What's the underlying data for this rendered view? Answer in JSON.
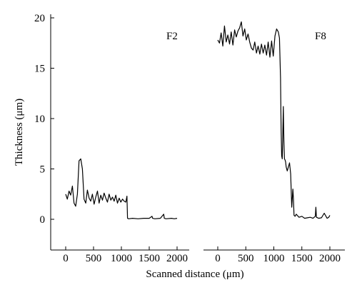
{
  "chart_data": {
    "type": "line",
    "ylabel": "Thickness (μm)",
    "xlabel": "Scanned distance (μm)",
    "ylim": [
      -1,
      20
    ],
    "y_ticks": [
      0,
      5,
      10,
      15,
      20
    ],
    "grid": false,
    "panels": [
      {
        "label": "F2",
        "xlim": [
          -100,
          2100
        ],
        "x_ticks": [
          0,
          500,
          1000,
          1500,
          2000
        ],
        "series": [
          {
            "x": [
              0,
              30,
              60,
              90,
              120,
              150,
              180,
              210,
              240,
              270,
              300,
              330,
              360,
              390,
              420,
              450,
              480,
              510,
              540,
              570,
              600,
              630,
              660,
              690,
              720,
              750,
              780,
              810,
              840,
              870,
              900,
              930,
              960,
              990,
              1020,
              1050,
              1080,
              1100,
              1110,
              1130,
              1200,
              1300,
              1400,
              1500,
              1550,
              1560,
              1600,
              1700,
              1760,
              1770,
              1800,
              1900,
              1950,
              2000
            ],
            "y": [
              2.5,
              2.0,
              2.8,
              2.4,
              3.3,
              1.6,
              1.3,
              2.5,
              5.8,
              6.0,
              5.0,
              2.0,
              1.6,
              2.9,
              2.1,
              1.8,
              2.5,
              1.5,
              2.2,
              2.8,
              1.6,
              2.4,
              1.9,
              2.6,
              2.1,
              1.7,
              2.5,
              1.9,
              2.2,
              1.8,
              2.4,
              1.6,
              2.1,
              1.7,
              2.0,
              1.8,
              1.7,
              2.3,
              0.1,
              0.05,
              0.1,
              0.05,
              0.1,
              0.1,
              0.3,
              0.1,
              0.05,
              0.1,
              0.5,
              0.1,
              0.05,
              0.1,
              0.05,
              0.1
            ]
          }
        ]
      },
      {
        "label": "F8",
        "xlim": [
          -100,
          2100
        ],
        "x_ticks": [
          0,
          500,
          1000,
          1500,
          2000
        ],
        "series": [
          {
            "x": [
              0,
              30,
              60,
              90,
              120,
              150,
              180,
              210,
              240,
              270,
              300,
              330,
              360,
              390,
              420,
              450,
              480,
              510,
              540,
              570,
              600,
              630,
              660,
              690,
              720,
              750,
              780,
              810,
              840,
              870,
              900,
              930,
              960,
              990,
              1020,
              1050,
              1080,
              1100,
              1120,
              1130,
              1140,
              1150,
              1160,
              1170,
              1180,
              1190,
              1200,
              1210,
              1220,
              1240,
              1260,
              1280,
              1300,
              1320,
              1340,
              1350,
              1360,
              1380,
              1400,
              1450,
              1500,
              1550,
              1600,
              1650,
              1700,
              1740,
              1750,
              1760,
              1800,
              1850,
              1900,
              1950,
              1980,
              2000
            ],
            "y": [
              17.8,
              17.5,
              18.5,
              17.2,
              19.2,
              17.6,
              18.3,
              17.4,
              18.6,
              17.3,
              18.8,
              18.1,
              18.7,
              19.0,
              19.6,
              18.2,
              18.9,
              17.8,
              18.4,
              17.6,
              17.0,
              16.8,
              17.6,
              16.5,
              17.2,
              16.4,
              17.4,
              16.5,
              17.3,
              16.3,
              17.6,
              16.1,
              17.7,
              16.2,
              18.2,
              18.9,
              18.6,
              18.0,
              14.0,
              9.0,
              6.3,
              6.0,
              8.5,
              11.2,
              7.8,
              6.0,
              5.9,
              5.7,
              5.2,
              4.8,
              5.2,
              5.6,
              4.5,
              1.2,
              3.0,
              2.0,
              0.4,
              0.3,
              0.5,
              0.2,
              0.3,
              0.1,
              0.15,
              0.2,
              0.1,
              0.3,
              1.2,
              0.2,
              0.1,
              0.15,
              0.6,
              0.1,
              0.2,
              0.4
            ]
          }
        ]
      }
    ]
  }
}
